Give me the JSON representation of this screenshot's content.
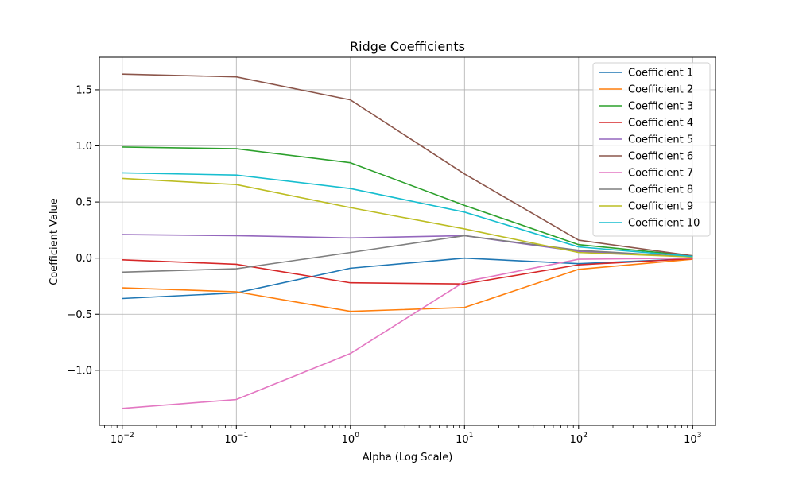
{
  "chart_data": {
    "type": "line",
    "title": "Ridge Coefficients",
    "xlabel": "Alpha (Log Scale)",
    "ylabel": "Coefficient Value",
    "x_scale": "log",
    "x": [
      0.01,
      0.1,
      1,
      10,
      100,
      1000
    ],
    "x_tick_bases": [
      "10",
      "10",
      "10",
      "10",
      "10",
      "10"
    ],
    "x_tick_exponents": [
      "−2",
      "−1",
      "0",
      "1",
      "2",
      "3"
    ],
    "xlim": [
      0.0063,
      1585
    ],
    "ylim": [
      -1.49,
      1.79
    ],
    "y_ticks": [
      -1.0,
      -0.5,
      0.0,
      0.5,
      1.0,
      1.5
    ],
    "y_tick_labels": [
      "−1.0",
      "−0.5",
      "0.0",
      "0.5",
      "1.0",
      "1.5"
    ],
    "grid": true,
    "legend_position": "top-right",
    "series": [
      {
        "name": "Coefficient 1",
        "color": "#1f77b4",
        "values": [
          -0.36,
          -0.31,
          -0.09,
          0.0,
          -0.05,
          -0.005
        ]
      },
      {
        "name": "Coefficient 2",
        "color": "#ff7f0e",
        "values": [
          -0.265,
          -0.3,
          -0.475,
          -0.44,
          -0.1,
          -0.01
        ]
      },
      {
        "name": "Coefficient 3",
        "color": "#2ca02c",
        "values": [
          0.99,
          0.975,
          0.85,
          0.47,
          0.12,
          0.02
        ]
      },
      {
        "name": "Coefficient 4",
        "color": "#d62728",
        "values": [
          -0.015,
          -0.055,
          -0.22,
          -0.23,
          -0.06,
          -0.005
        ]
      },
      {
        "name": "Coefficient 5",
        "color": "#9467bd",
        "values": [
          0.21,
          0.2,
          0.18,
          0.2,
          0.06,
          0.01
        ]
      },
      {
        "name": "Coefficient 6",
        "color": "#8c564b",
        "values": [
          1.64,
          1.615,
          1.41,
          0.75,
          0.16,
          0.02
        ]
      },
      {
        "name": "Coefficient 7",
        "color": "#e377c2",
        "values": [
          -1.34,
          -1.26,
          -0.85,
          -0.21,
          -0.01,
          0.0
        ]
      },
      {
        "name": "Coefficient 8",
        "color": "#7f7f7f",
        "values": [
          -0.125,
          -0.095,
          0.05,
          0.2,
          0.07,
          0.01
        ]
      },
      {
        "name": "Coefficient 9",
        "color": "#bcbd22",
        "values": [
          0.71,
          0.655,
          0.45,
          0.26,
          0.05,
          0.01
        ]
      },
      {
        "name": "Coefficient 10",
        "color": "#17becf",
        "values": [
          0.76,
          0.74,
          0.62,
          0.41,
          0.1,
          0.015
        ]
      }
    ]
  }
}
